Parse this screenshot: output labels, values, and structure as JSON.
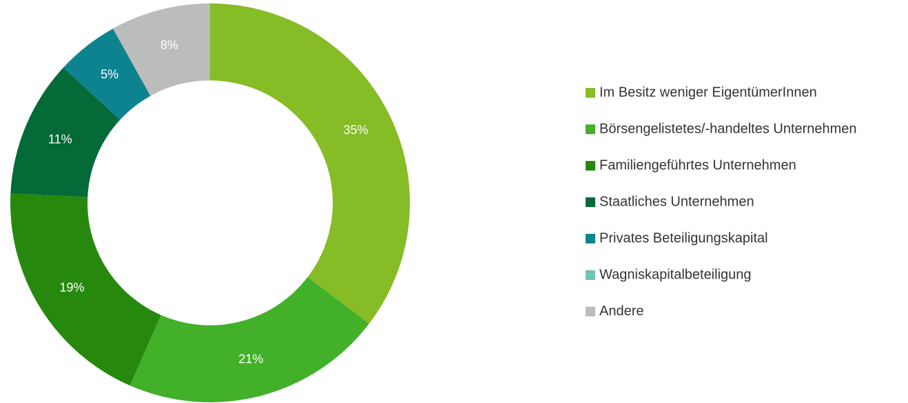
{
  "chart_data": {
    "type": "donut",
    "categories": [
      "Im Besitz weniger EigentümerInnen",
      "Börsengelistetes/-handeltes Unternehmen",
      "Familiengeführtes Unternehmen",
      "Staatliches Unternehmen",
      "Privates Beteiligungskapital",
      "Wagniskapitalbeteiligung",
      "Andere"
    ],
    "values": [
      35,
      21,
      19,
      11,
      5,
      0,
      8
    ],
    "value_labels": [
      "35%",
      "21%",
      "19%",
      "11%",
      "5%",
      null,
      "8%"
    ],
    "colors": [
      "#86bc25",
      "#43b02a",
      "#26890d",
      "#046a38",
      "#0d8390",
      "#6fc2b4",
      "#bbbcbc"
    ],
    "legend": "right"
  }
}
